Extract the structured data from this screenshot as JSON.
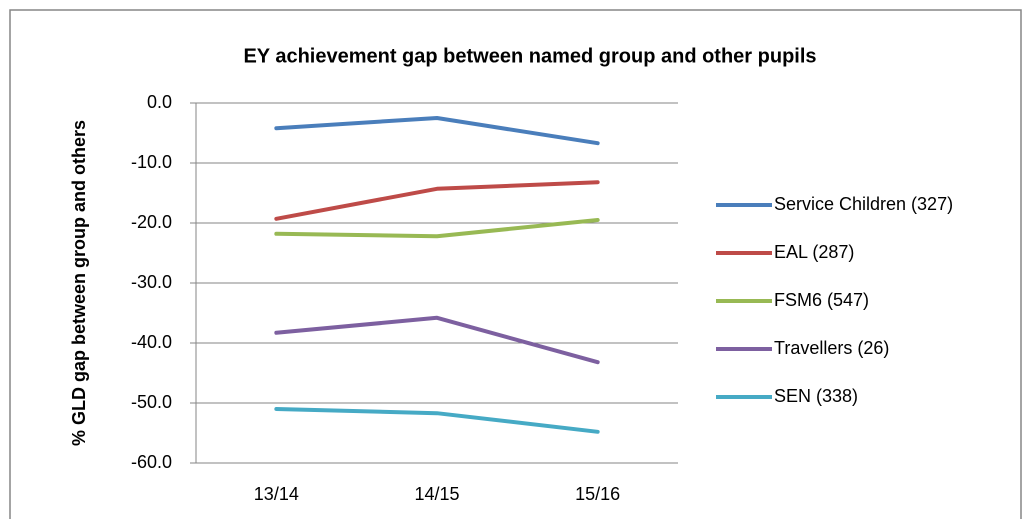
{
  "chart_data": {
    "type": "line",
    "title": "EY achievement gap between named group and other pupils",
    "y_label": "% GLD gap between group and others",
    "categories": [
      "13/14",
      "14/15",
      "15/16"
    ],
    "series": [
      {
        "name": "Service Children (327)",
        "color": "#4a7ebb",
        "values": [
          -4.2,
          -2.5,
          -6.7
        ]
      },
      {
        "name": "EAL (287)",
        "color": "#be4b48",
        "values": [
          -19.3,
          -14.3,
          -13.2
        ]
      },
      {
        "name": "FSM6 (547)",
        "color": "#98b954",
        "values": [
          -21.8,
          -22.2,
          -19.5
        ]
      },
      {
        "name": "Travellers (26)",
        "color": "#7d60a0",
        "values": [
          -38.3,
          -35.8,
          -43.2
        ]
      },
      {
        "name": "SEN (338)",
        "color": "#46aac5",
        "values": [
          -51.0,
          -51.7,
          -54.8
        ]
      }
    ],
    "ylim": [
      -60,
      0
    ],
    "yticks": [
      {
        "value": 0,
        "label": "0.0"
      },
      {
        "value": -10,
        "label": "-10.0"
      },
      {
        "value": -20,
        "label": "-20.0"
      },
      {
        "value": -30,
        "label": "-30.0"
      },
      {
        "value": -40,
        "label": "-40.0"
      },
      {
        "value": -50,
        "label": "-50.0"
      },
      {
        "value": -60,
        "label": "-60.0"
      }
    ],
    "grid": true,
    "legend": "right"
  }
}
